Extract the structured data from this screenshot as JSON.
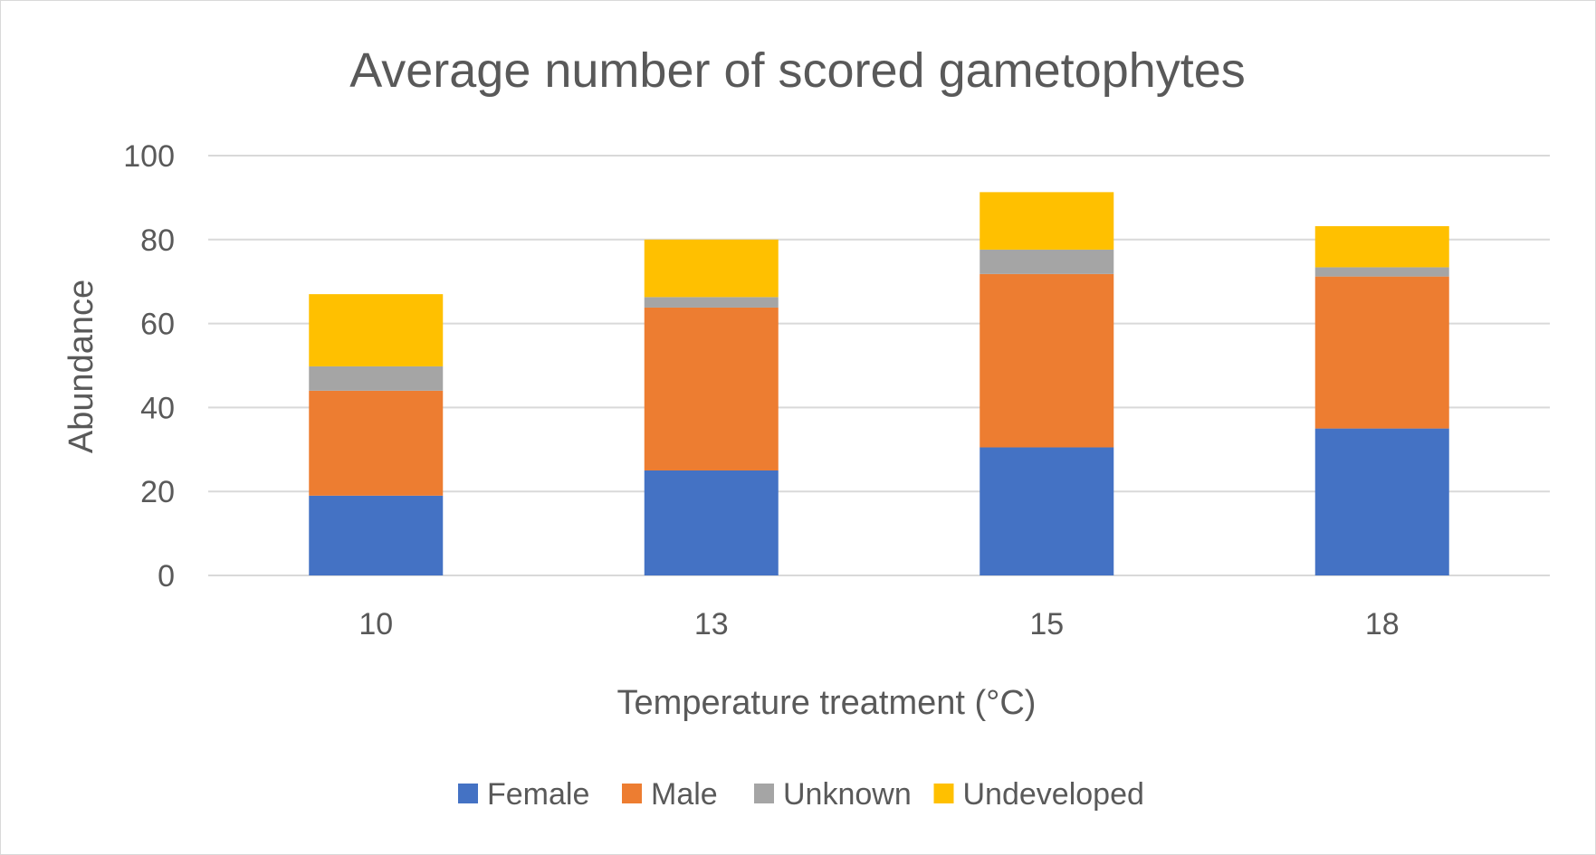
{
  "chart_data": {
    "type": "bar",
    "stacked": true,
    "title": "Average number of scored gametophytes",
    "xlabel": "Temperature treatment (°C)",
    "ylabel": "Abundance",
    "categories": [
      "10",
      "13",
      "15",
      "18"
    ],
    "ylim": [
      0,
      100
    ],
    "yticks": [
      0,
      20,
      40,
      60,
      80,
      100
    ],
    "grid": true,
    "legend_position": "bottom",
    "series": [
      {
        "name": "Female",
        "color": "#4472C4",
        "values": [
          19,
          25,
          30.5,
          35
        ]
      },
      {
        "name": "Male",
        "color": "#ED7D31",
        "values": [
          25,
          38.8,
          41.3,
          36.2
        ]
      },
      {
        "name": "Unknown",
        "color": "#A5A5A5",
        "values": [
          5.8,
          2.5,
          5.8,
          2.2
        ]
      },
      {
        "name": "Undeveloped",
        "color": "#FFC000",
        "values": [
          17.2,
          13.7,
          13.7,
          9.8
        ]
      }
    ]
  }
}
